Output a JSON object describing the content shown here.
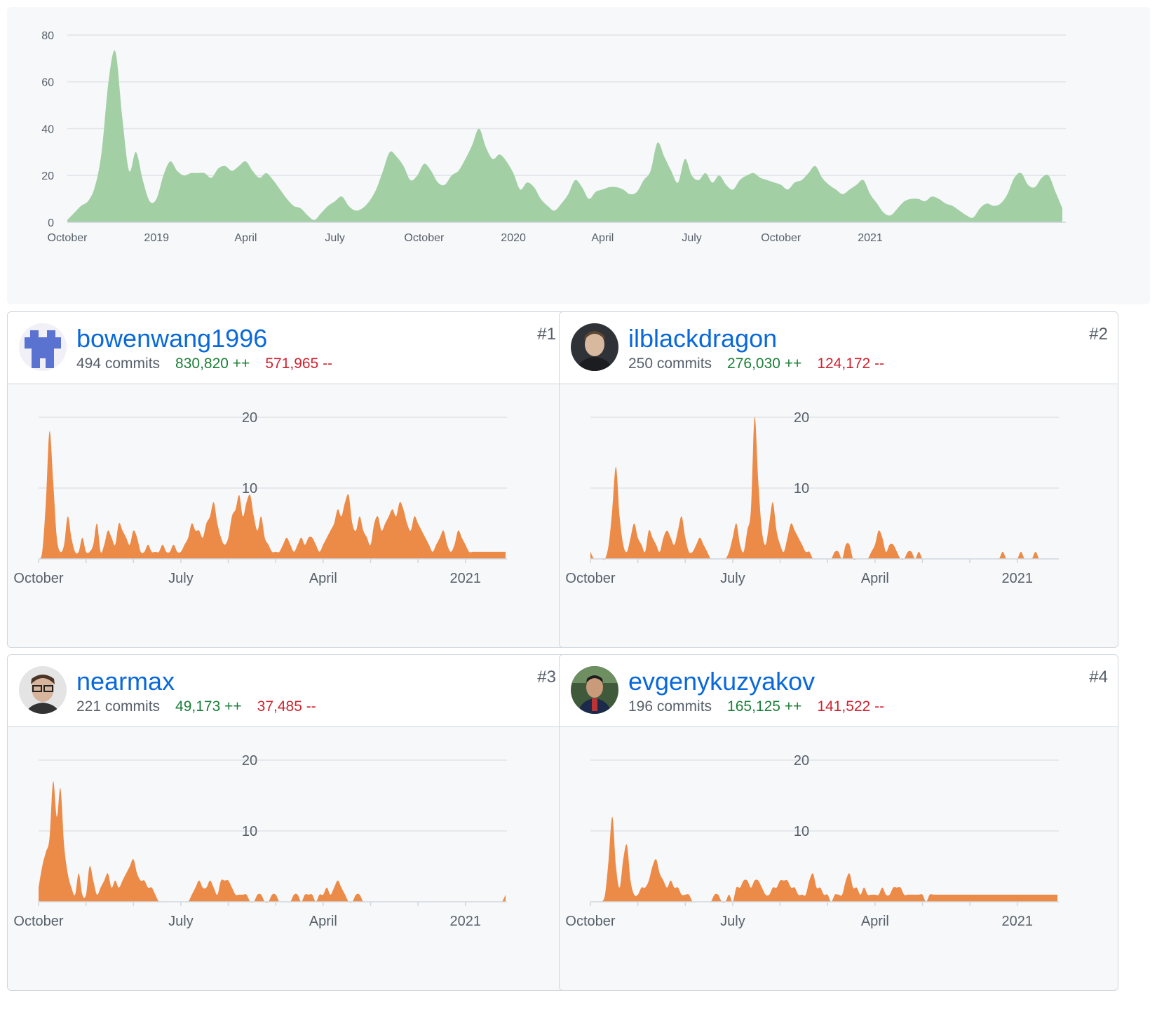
{
  "main_chart": {
    "chart_data": {
      "type": "area",
      "title": "",
      "color": "#a2cfa4",
      "y_ticks": [
        "0",
        "20",
        "40",
        "60",
        "80"
      ],
      "ylim": [
        0,
        80
      ],
      "x_tick_labels": [
        "October",
        "2019",
        "April",
        "July",
        "October",
        "2020",
        "April",
        "July",
        "October",
        "2021"
      ],
      "x_tick_index": [
        0,
        13,
        26,
        39,
        52,
        65,
        78,
        91,
        104,
        117
      ],
      "values": [
        1,
        4,
        7,
        9,
        15,
        30,
        60,
        73,
        45,
        22,
        30,
        18,
        9,
        10,
        20,
        26,
        22,
        20,
        21,
        21,
        21,
        19,
        23,
        24,
        22,
        24,
        26,
        22,
        19,
        21,
        18,
        14,
        10,
        7,
        6,
        3,
        1,
        4,
        7,
        9,
        11,
        7,
        5,
        6,
        9,
        14,
        22,
        30,
        28,
        24,
        18,
        20,
        25,
        22,
        17,
        16,
        20,
        22,
        27,
        33,
        40,
        32,
        27,
        29,
        26,
        21,
        14,
        17,
        15,
        10,
        7,
        5,
        8,
        12,
        18,
        15,
        10,
        13,
        14,
        15,
        15,
        14,
        12,
        13,
        18,
        22,
        34,
        28,
        22,
        17,
        27,
        20,
        18,
        21,
        17,
        20,
        16,
        14,
        18,
        20,
        21,
        19,
        18,
        17,
        16,
        14,
        17,
        18,
        21,
        24,
        19,
        16,
        14,
        12,
        14,
        16,
        18,
        12,
        8,
        4,
        3,
        6,
        9,
        10,
        10,
        9,
        11,
        10,
        8,
        7,
        5,
        3,
        2,
        6,
        8,
        7,
        8,
        12,
        19,
        21,
        16,
        15,
        19,
        20,
        13,
        6
      ]
    }
  },
  "contributors": [
    {
      "username": "bowenwang1996",
      "commits": "494 commits",
      "additions": "830,820 ++",
      "deletions": "571,965 --",
      "rank": "#1",
      "chart_data": {
        "type": "area",
        "color": "#ec8a48",
        "y_ticks": [
          "10",
          "20"
        ],
        "ylim": [
          0,
          20
        ],
        "x_tick_labels": [
          "October",
          "July",
          "April",
          "2021"
        ],
        "x_tick_index": [
          0,
          39,
          78,
          117
        ],
        "values": [
          0,
          1,
          8,
          18,
          11,
          3,
          1,
          2,
          6,
          3,
          1,
          1,
          3,
          1,
          1,
          2,
          5,
          1,
          2,
          4,
          3,
          2,
          5,
          4,
          3,
          2,
          4,
          3,
          1,
          1,
          2,
          1,
          1,
          1,
          2,
          1,
          1,
          2,
          1,
          1,
          2,
          3,
          5,
          4,
          4,
          3,
          5,
          6,
          8,
          5,
          3,
          2,
          3,
          6,
          7,
          9,
          6,
          8,
          9,
          6,
          4,
          6,
          3,
          2,
          1,
          1,
          1,
          2,
          3,
          2,
          1,
          2,
          3,
          2,
          3,
          3,
          2,
          1,
          2,
          3,
          4,
          5,
          7,
          6,
          8,
          9,
          5,
          4,
          6,
          4,
          3,
          2,
          5,
          6,
          4,
          5,
          6,
          7,
          6,
          8,
          7,
          5,
          4,
          6,
          5,
          4,
          3,
          2,
          1,
          2,
          3,
          4,
          2,
          1,
          2,
          4,
          3,
          2,
          1,
          1,
          1,
          1,
          1,
          1,
          1,
          1,
          1,
          1,
          1
        ]
      }
    },
    {
      "username": "ilblackdragon",
      "commits": "250 commits",
      "additions": "276,030 ++",
      "deletions": "124,172 --",
      "rank": "#2",
      "chart_data": {
        "type": "area",
        "color": "#ec8a48",
        "y_ticks": [
          "10",
          "20"
        ],
        "ylim": [
          0,
          20
        ],
        "x_tick_labels": [
          "October",
          "July",
          "April",
          "2021"
        ],
        "x_tick_index": [
          0,
          39,
          78,
          117
        ],
        "values": [
          1,
          0,
          0,
          0,
          0,
          2,
          7,
          13,
          6,
          2,
          1,
          3,
          5,
          3,
          2,
          1,
          4,
          3,
          2,
          1,
          3,
          4,
          3,
          2,
          4,
          6,
          3,
          1,
          1,
          2,
          3,
          2,
          1,
          0,
          0,
          0,
          0,
          0,
          1,
          3,
          5,
          2,
          1,
          4,
          7,
          20,
          11,
          4,
          2,
          5,
          8,
          4,
          2,
          1,
          3,
          5,
          4,
          3,
          2,
          1,
          1,
          0,
          0,
          0,
          0,
          0,
          0,
          1,
          1,
          0,
          2,
          2,
          0,
          0,
          0,
          0,
          0,
          1,
          2,
          4,
          3,
          1,
          2,
          2,
          1,
          0,
          0,
          1,
          1,
          0,
          1,
          0,
          0,
          0,
          0,
          0,
          0,
          0,
          0,
          0,
          0,
          0,
          0,
          0,
          0,
          0,
          0,
          0,
          0,
          0,
          0,
          0,
          0,
          1,
          0,
          0,
          0,
          0,
          1,
          0,
          0,
          0,
          1,
          0,
          0,
          0,
          0,
          0,
          0
        ]
      }
    },
    {
      "username": "nearmax",
      "commits": "221 commits",
      "additions": "49,173 ++",
      "deletions": "37,485 --",
      "rank": "#3",
      "chart_data": {
        "type": "area",
        "color": "#ec8a48",
        "y_ticks": [
          "10",
          "20"
        ],
        "ylim": [
          0,
          20
        ],
        "x_tick_labels": [
          "October",
          "July",
          "April",
          "2021"
        ],
        "x_tick_index": [
          0,
          39,
          78,
          117
        ],
        "values": [
          2,
          5,
          7,
          9,
          17,
          12,
          16,
          8,
          4,
          2,
          1,
          4,
          1,
          1,
          5,
          3,
          1,
          2,
          3,
          4,
          2,
          3,
          2,
          3,
          4,
          5,
          6,
          4,
          3,
          3,
          2,
          2,
          1,
          0,
          0,
          0,
          0,
          0,
          0,
          0,
          0,
          0,
          1,
          2,
          3,
          2,
          2,
          3,
          2,
          1,
          3,
          3,
          3,
          2,
          1,
          1,
          1,
          1,
          0,
          0,
          1,
          1,
          0,
          0,
          1,
          1,
          0,
          0,
          0,
          0,
          1,
          1,
          0,
          1,
          1,
          1,
          0,
          1,
          1,
          2,
          1,
          2,
          3,
          2,
          1,
          0,
          0,
          1,
          1,
          0,
          0,
          0,
          0,
          0,
          0,
          0,
          0,
          0,
          0,
          0,
          0,
          0,
          0,
          0,
          0,
          0,
          0,
          0,
          0,
          0,
          0,
          0,
          0,
          0,
          0,
          0,
          0,
          0,
          0,
          0,
          0,
          0,
          0,
          0,
          0,
          0,
          0,
          0,
          1
        ]
      }
    },
    {
      "username": "evgenykuzyakov",
      "commits": "196 commits",
      "additions": "165,125 ++",
      "deletions": "141,522 --",
      "rank": "#4",
      "chart_data": {
        "type": "area",
        "color": "#ec8a48",
        "y_ticks": [
          "10",
          "20"
        ],
        "ylim": [
          0,
          20
        ],
        "x_tick_labels": [
          "October",
          "July",
          "April",
          "2021"
        ],
        "x_tick_index": [
          0,
          39,
          78,
          117
        ],
        "values": [
          0,
          0,
          0,
          0,
          1,
          6,
          12,
          5,
          2,
          6,
          8,
          3,
          1,
          1,
          2,
          2,
          3,
          5,
          6,
          4,
          3,
          2,
          3,
          2,
          2,
          1,
          1,
          1,
          0,
          0,
          0,
          0,
          0,
          0,
          1,
          1,
          0,
          0,
          1,
          0,
          2,
          2,
          3,
          3,
          2,
          3,
          3,
          2,
          1,
          1,
          2,
          2,
          3,
          3,
          3,
          2,
          2,
          1,
          1,
          1,
          3,
          4,
          2,
          2,
          1,
          1,
          0,
          1,
          1,
          1,
          3,
          4,
          2,
          2,
          1,
          2,
          1,
          1,
          1,
          1,
          2,
          1,
          1,
          2,
          2,
          2,
          1,
          1,
          1,
          1,
          1,
          1,
          0,
          1,
          1,
          1,
          1,
          1,
          1,
          1,
          1,
          1,
          1,
          1,
          1,
          1,
          1,
          1,
          1,
          1,
          1,
          1,
          1,
          1,
          1,
          1,
          1,
          1,
          1,
          1,
          1,
          1,
          1,
          1,
          1,
          1,
          1,
          1,
          1
        ]
      }
    }
  ]
}
